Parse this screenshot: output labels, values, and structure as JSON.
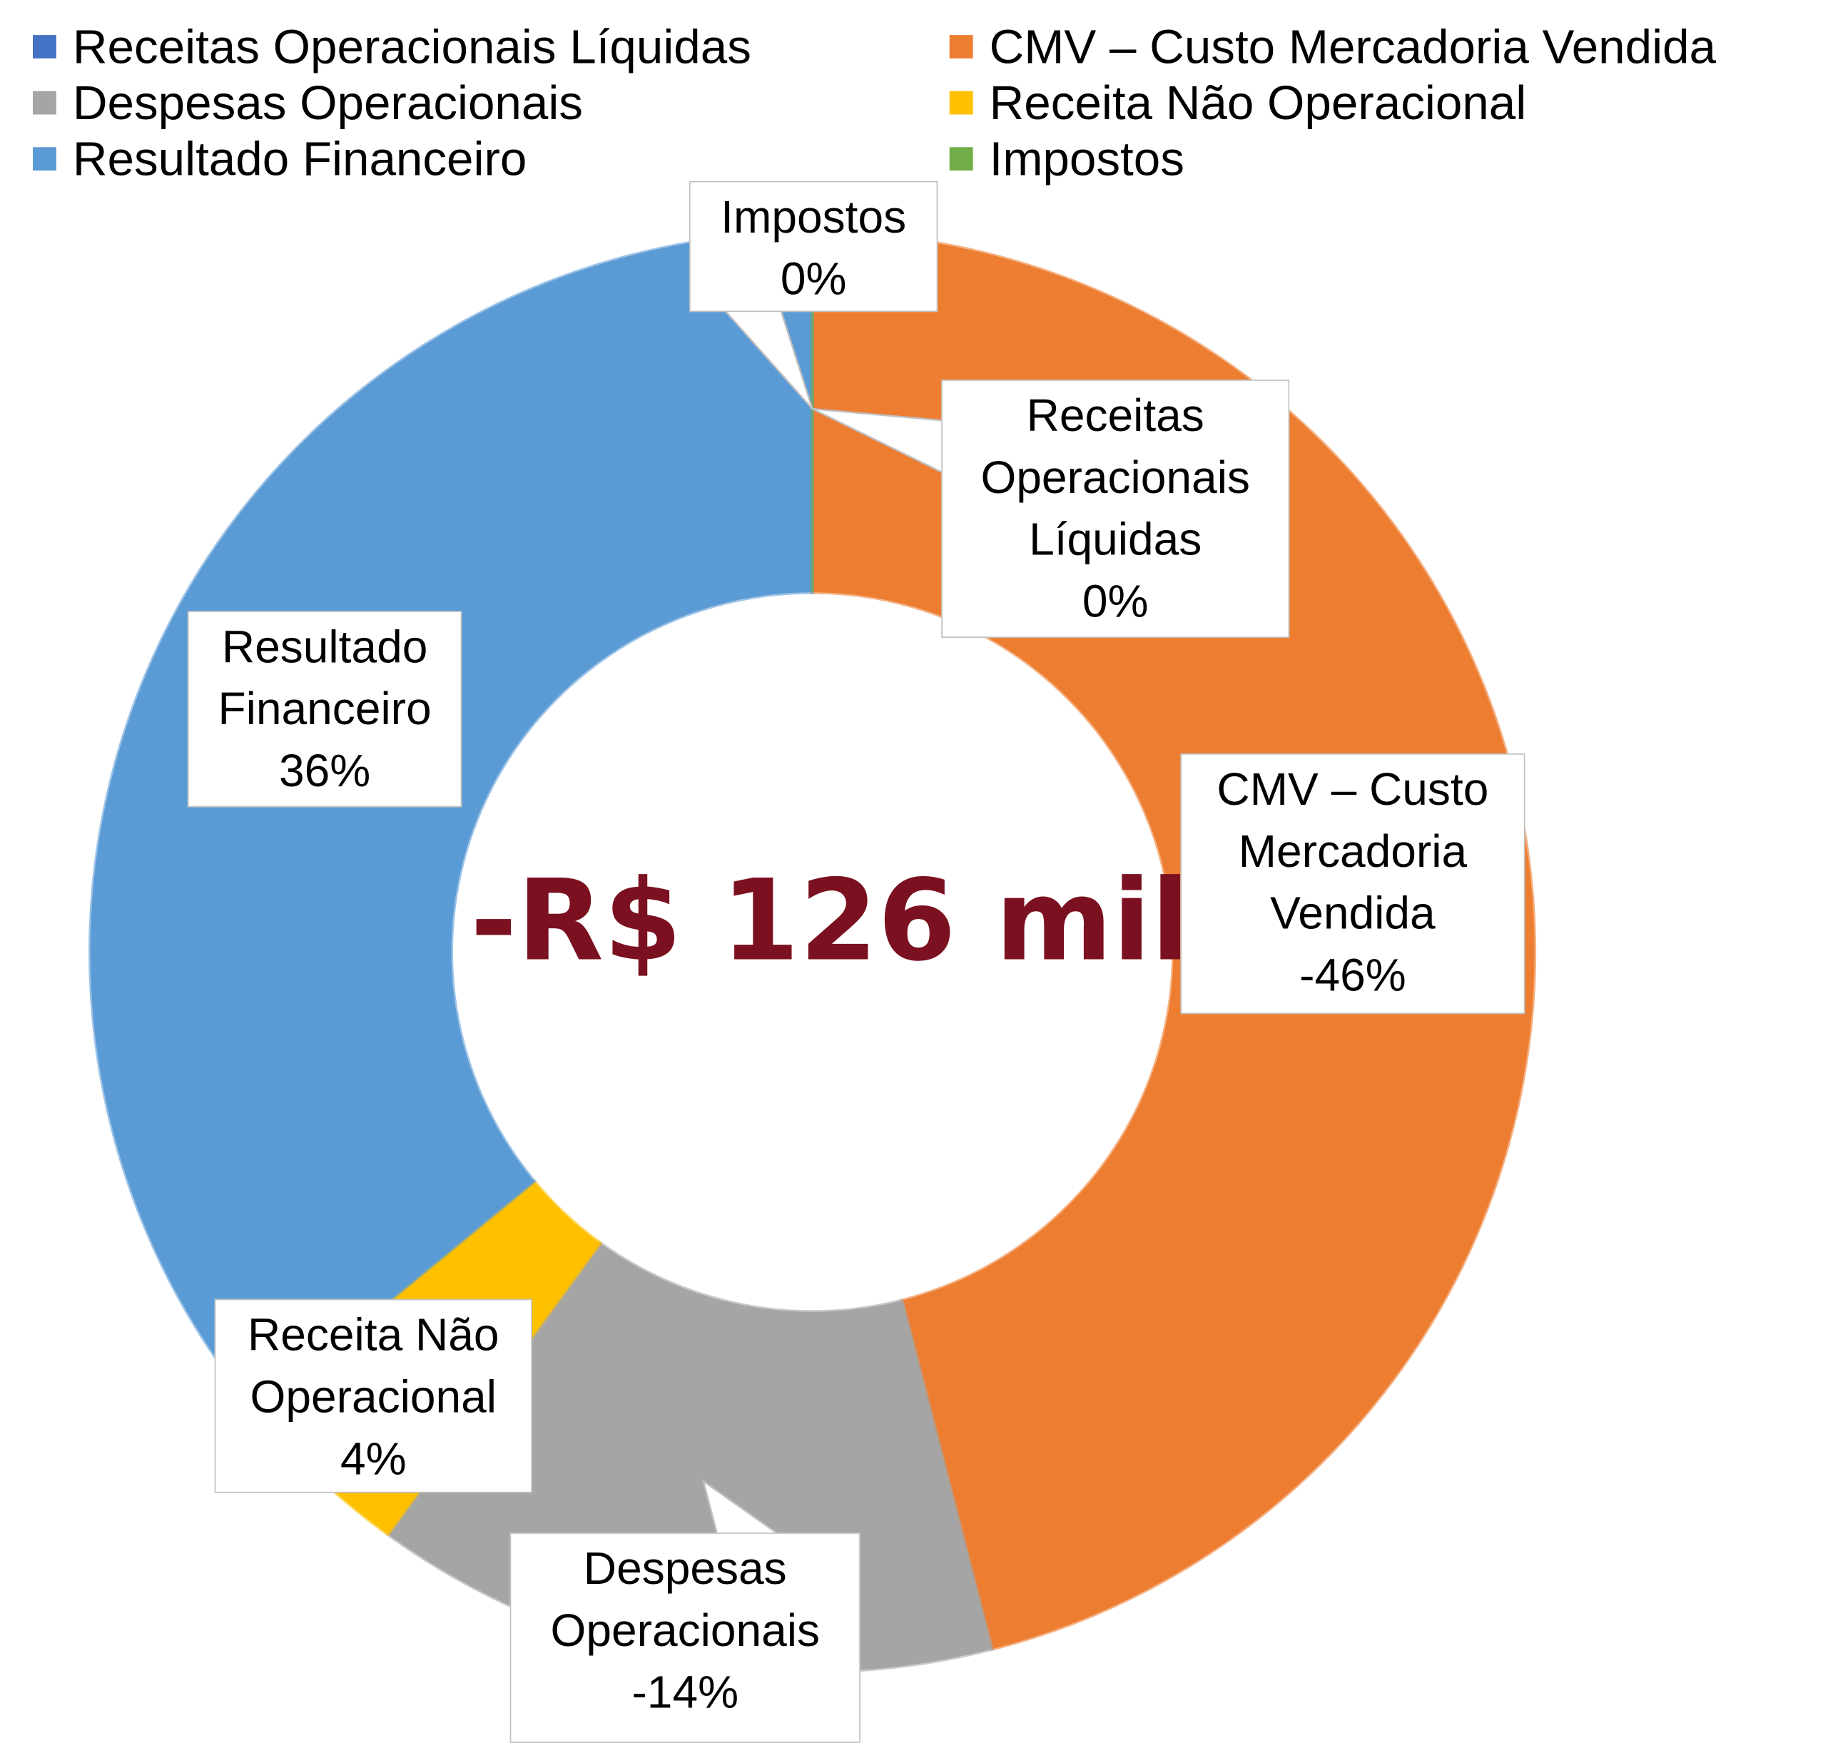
{
  "chart_data": {
    "type": "donut",
    "center_label": "-R$ 126 mil",
    "categories": [
      "Receitas Operacionais Líquidas",
      "CMV – Custo Mercadoria Vendida",
      "Despesas Operacionais",
      "Receita Não Operacional",
      "Resultado Financeiro",
      "Impostos"
    ],
    "values": [
      0,
      -46,
      -14,
      4,
      36,
      0
    ],
    "value_labels": [
      "0%",
      "-46%",
      "-14%",
      "4%",
      "36%",
      "0%"
    ],
    "colors": [
      "#4472c4",
      "#ed7d31",
      "#a5a5a5",
      "#ffc000",
      "#5b9bd5",
      "#70ad47"
    ],
    "legend": "top"
  }
}
